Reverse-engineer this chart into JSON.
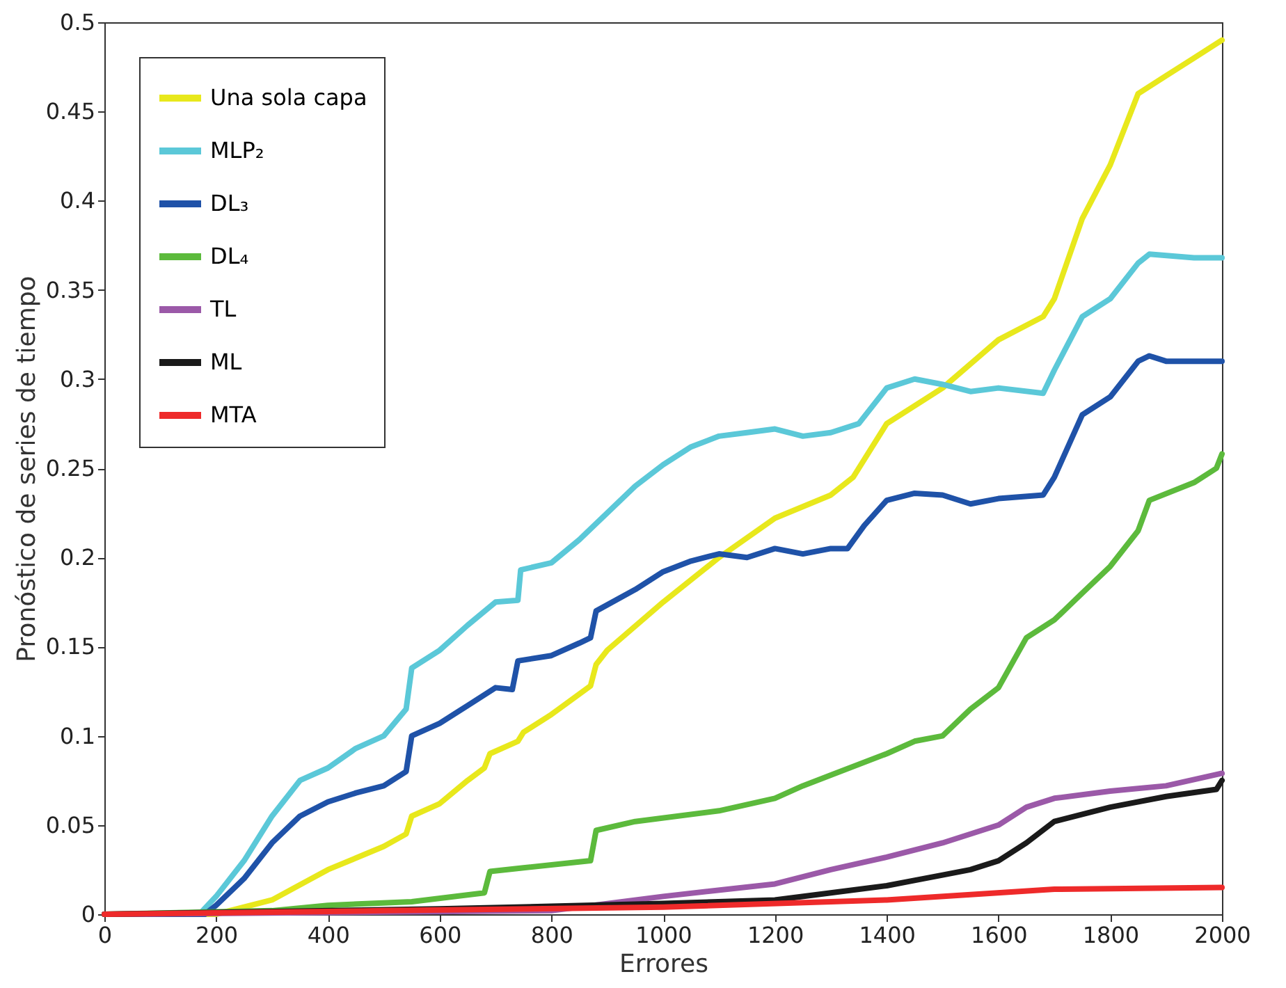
{
  "chart_data": {
    "type": "line",
    "xlabel": "Errores",
    "ylabel": "Pronóstico de series de tiempo",
    "xlim": [
      0,
      2000
    ],
    "ylim": [
      0,
      0.5
    ],
    "xticks": [
      0,
      200,
      400,
      600,
      800,
      1000,
      1200,
      1400,
      1600,
      1800,
      2000
    ],
    "yticks": [
      0,
      0.05,
      0.1,
      0.15,
      0.2,
      0.25,
      0.3,
      0.35,
      0.4,
      0.45,
      0.5
    ],
    "grid": false,
    "legend": "top left",
    "marker": "none",
    "line_style": "solid",
    "series": [
      {
        "name": "Una sola capa",
        "color": "#e8e81c",
        "x": [
          0,
          200,
          300,
          400,
          500,
          540,
          550,
          600,
          650,
          680,
          690,
          740,
          750,
          800,
          870,
          880,
          900,
          1000,
          1100,
          1200,
          1300,
          1340,
          1400,
          1500,
          1600,
          1680,
          1700,
          1750,
          1800,
          1850,
          1900,
          1950,
          2000
        ],
        "values": [
          0,
          0,
          0.008,
          0.025,
          0.038,
          0.045,
          0.055,
          0.062,
          0.075,
          0.082,
          0.09,
          0.097,
          0.102,
          0.112,
          0.128,
          0.14,
          0.148,
          0.175,
          0.2,
          0.222,
          0.235,
          0.245,
          0.275,
          0.295,
          0.322,
          0.335,
          0.345,
          0.39,
          0.42,
          0.46,
          0.47,
          0.48,
          0.49
        ]
      },
      {
        "name": "MLP₂",
        "color": "#5bc8d8",
        "x": [
          0,
          170,
          200,
          250,
          300,
          350,
          400,
          450,
          500,
          540,
          550,
          600,
          650,
          700,
          740,
          745,
          800,
          850,
          900,
          950,
          1000,
          1050,
          1100,
          1150,
          1200,
          1250,
          1300,
          1350,
          1400,
          1450,
          1500,
          1550,
          1600,
          1680,
          1700,
          1750,
          1800,
          1850,
          1870,
          1950,
          2000
        ],
        "values": [
          0,
          0,
          0.01,
          0.03,
          0.055,
          0.075,
          0.082,
          0.093,
          0.1,
          0.115,
          0.138,
          0.148,
          0.162,
          0.175,
          0.176,
          0.193,
          0.197,
          0.21,
          0.225,
          0.24,
          0.252,
          0.262,
          0.268,
          0.27,
          0.272,
          0.268,
          0.27,
          0.275,
          0.295,
          0.3,
          0.297,
          0.293,
          0.295,
          0.292,
          0.305,
          0.335,
          0.345,
          0.365,
          0.37,
          0.368,
          0.368
        ]
      },
      {
        "name": "DL₃",
        "color": "#1f52a8",
        "x": [
          0,
          180,
          200,
          250,
          300,
          350,
          400,
          450,
          500,
          540,
          550,
          600,
          650,
          700,
          730,
          740,
          800,
          850,
          870,
          880,
          950,
          1000,
          1050,
          1100,
          1150,
          1200,
          1250,
          1300,
          1330,
          1360,
          1400,
          1450,
          1500,
          1550,
          1600,
          1680,
          1700,
          1750,
          1800,
          1850,
          1870,
          1900,
          2000
        ],
        "values": [
          0,
          0,
          0.005,
          0.02,
          0.04,
          0.055,
          0.063,
          0.068,
          0.072,
          0.08,
          0.1,
          0.107,
          0.117,
          0.127,
          0.126,
          0.142,
          0.145,
          0.152,
          0.155,
          0.17,
          0.182,
          0.192,
          0.198,
          0.202,
          0.2,
          0.205,
          0.202,
          0.205,
          0.205,
          0.218,
          0.232,
          0.236,
          0.235,
          0.23,
          0.233,
          0.235,
          0.245,
          0.28,
          0.29,
          0.31,
          0.313,
          0.31,
          0.31
        ]
      },
      {
        "name": "DL₄",
        "color": "#5cba3c",
        "x": [
          0,
          300,
          400,
          550,
          680,
          690,
          750,
          870,
          880,
          950,
          1100,
          1200,
          1250,
          1300,
          1400,
          1450,
          1500,
          1550,
          1600,
          1650,
          1700,
          1750,
          1800,
          1850,
          1870,
          1950,
          1990,
          2000
        ],
        "values": [
          0,
          0.002,
          0.005,
          0.007,
          0.012,
          0.024,
          0.026,
          0.03,
          0.047,
          0.052,
          0.058,
          0.065,
          0.072,
          0.078,
          0.09,
          0.097,
          0.1,
          0.115,
          0.127,
          0.155,
          0.165,
          0.18,
          0.195,
          0.215,
          0.232,
          0.242,
          0.25,
          0.258
        ]
      },
      {
        "name": "TL",
        "color": "#9b59a8",
        "x": [
          0,
          800,
          1000,
          1200,
          1300,
          1400,
          1500,
          1600,
          1650,
          1700,
          1800,
          1900,
          2000
        ],
        "values": [
          0,
          0.002,
          0.01,
          0.017,
          0.025,
          0.032,
          0.04,
          0.05,
          0.06,
          0.065,
          0.069,
          0.072,
          0.079
        ]
      },
      {
        "name": "ML",
        "color": "#1a1a1a",
        "x": [
          0,
          600,
          1000,
          1200,
          1300,
          1400,
          1500,
          1550,
          1600,
          1650,
          1700,
          1750,
          1800,
          1900,
          1990,
          2000
        ],
        "values": [
          0,
          0.003,
          0.006,
          0.008,
          0.012,
          0.016,
          0.022,
          0.025,
          0.03,
          0.04,
          0.052,
          0.056,
          0.06,
          0.066,
          0.07,
          0.075
        ]
      },
      {
        "name": "MTA",
        "color": "#ee2a2a",
        "x": [
          0,
          500,
          1000,
          1400,
          1700,
          2000
        ],
        "values": [
          0,
          0.002,
          0.004,
          0.008,
          0.014,
          0.015
        ]
      }
    ]
  }
}
